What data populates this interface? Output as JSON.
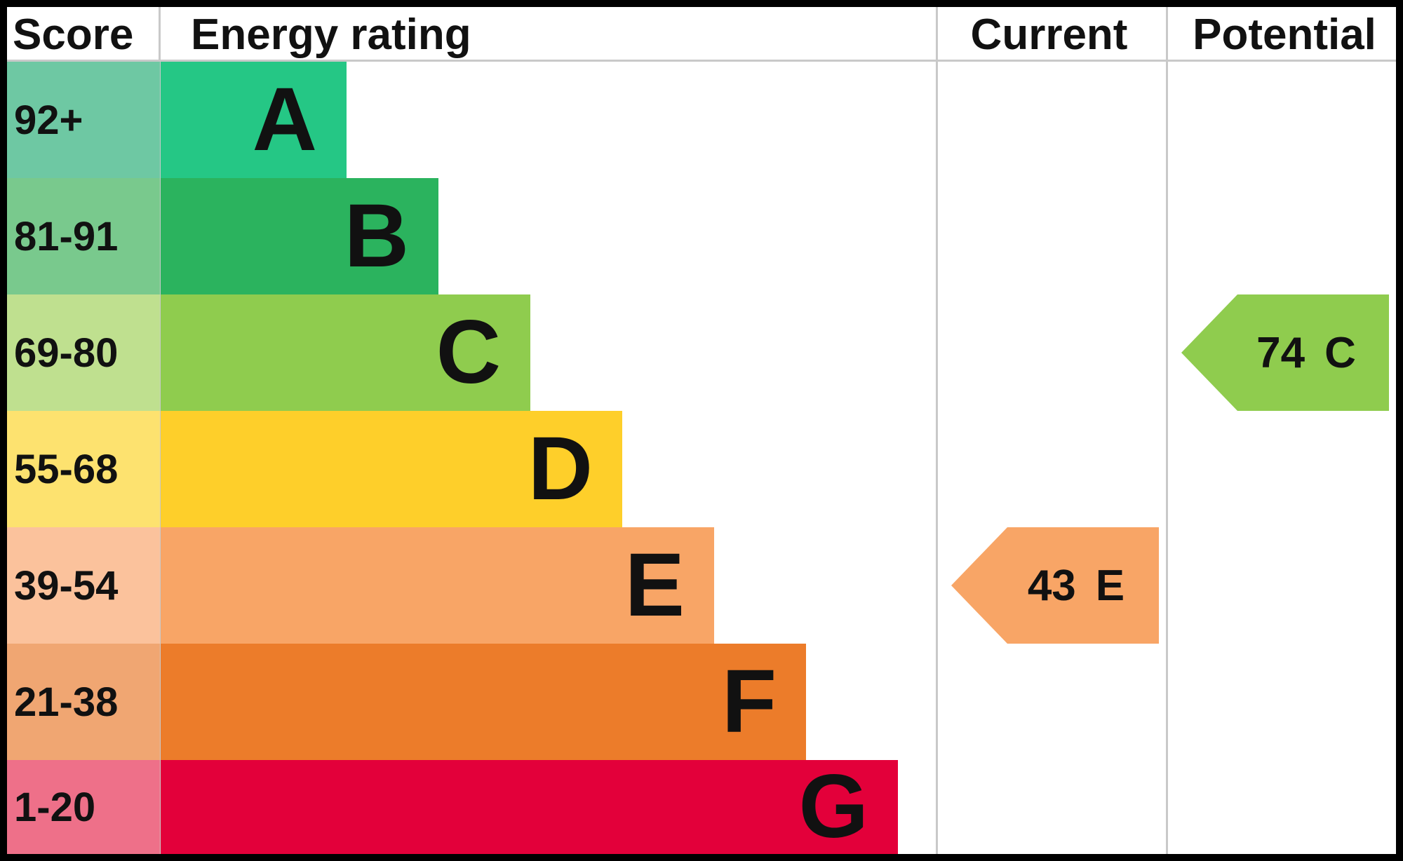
{
  "headers": {
    "score": "Score",
    "energy_rating": "Energy rating",
    "current": "Current",
    "potential": "Potential"
  },
  "chart_data": {
    "type": "bar",
    "categories": [
      "A",
      "B",
      "C",
      "D",
      "E",
      "F",
      "G"
    ],
    "score_ranges": [
      "92+",
      "81-91",
      "69-80",
      "55-68",
      "39-54",
      "21-38",
      "1-20"
    ],
    "band_colors": [
      "#25c785",
      "#2bb35e",
      "#8fcc4e",
      "#fecf2a",
      "#f8a566",
      "#ec7c2a",
      "#e3003a"
    ],
    "score_cell_colors": [
      "#6ec8a3",
      "#79c98d",
      "#bfe08f",
      "#fde26f",
      "#fbc29c",
      "#f0a672",
      "#ee7089"
    ],
    "current": {
      "score": "43",
      "band": "E",
      "color": "#f8a566"
    },
    "potential": {
      "score": "74",
      "band": "C",
      "color": "#8fcc4e"
    }
  }
}
